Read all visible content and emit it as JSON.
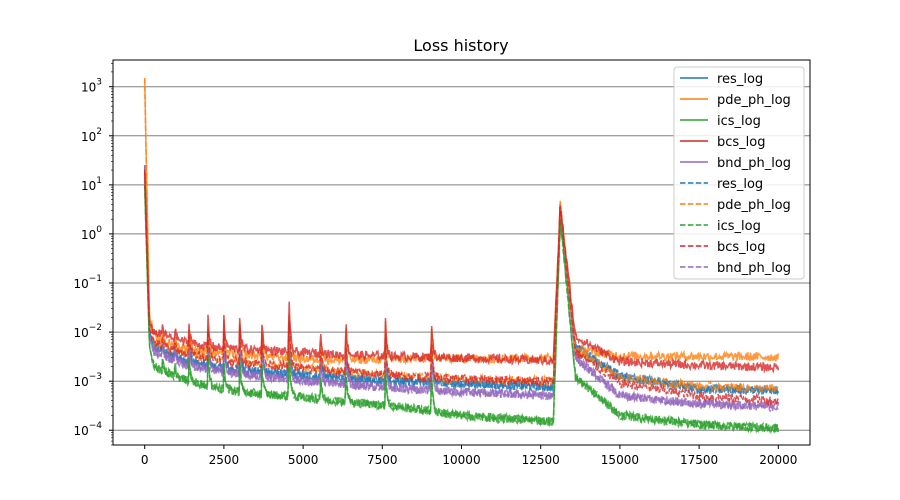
{
  "chart_data": {
    "type": "line",
    "title": "Loss history",
    "xlabel": "",
    "ylabel": "",
    "yscale": "log",
    "xlim": [
      -1000,
      21000
    ],
    "ylim": [
      5e-05,
      3500
    ],
    "x_ticks": [
      0,
      2500,
      5000,
      7500,
      10000,
      12500,
      15000,
      17500,
      20000
    ],
    "x_tick_labels": [
      "0",
      "2500",
      "5000",
      "7500",
      "10000",
      "12500",
      "15000",
      "17500",
      "20000"
    ],
    "y_ticks": [
      0.0001,
      0.001,
      0.01,
      0.1,
      1,
      10,
      100,
      1000
    ],
    "y_tick_labels": [
      [
        "10",
        "−4"
      ],
      [
        "10",
        "−3"
      ],
      [
        "10",
        "−2"
      ],
      [
        "10",
        "−1"
      ],
      [
        "10",
        "0"
      ],
      [
        "10",
        "1"
      ],
      [
        "10",
        "2"
      ],
      [
        "10",
        "3"
      ]
    ],
    "grid": "horizontal",
    "legend_position": "top-right",
    "spikes": [
      {
        "x": 0,
        "h": 1
      },
      {
        "x": 560,
        "h": 0.15
      },
      {
        "x": 950,
        "h": 0.2
      },
      {
        "x": 1400,
        "h": 0.3
      },
      {
        "x": 2000,
        "h": 0.45
      },
      {
        "x": 2500,
        "h": 0.45
      },
      {
        "x": 3000,
        "h": 0.5
      },
      {
        "x": 3700,
        "h": 0.45
      },
      {
        "x": 4550,
        "h": 0.9
      },
      {
        "x": 5550,
        "h": 0.4
      },
      {
        "x": 6350,
        "h": 0.55
      },
      {
        "x": 7600,
        "h": 0.6
      },
      {
        "x": 9050,
        "h": 0.65
      },
      {
        "x": 13100,
        "h": 1
      }
    ],
    "series": [
      {
        "name": "res_log",
        "color": "#1f77b4",
        "dash": false,
        "x": [
          0,
          150,
          300,
          1000,
          2000,
          3000,
          4500,
          6000,
          8000,
          10000,
          12900,
          13120,
          13600,
          15000,
          17500,
          20000
        ],
        "y": [
          25,
          0.01,
          0.005,
          0.003,
          0.002,
          0.0017,
          0.0014,
          0.0012,
          0.001,
          0.0009,
          0.00075,
          2.5,
          0.005,
          0.0013,
          0.0007,
          0.00065
        ]
      },
      {
        "name": "pde_ph_log",
        "color": "#ff7f0e",
        "dash": false,
        "x": [
          0,
          150,
          300,
          1000,
          2000,
          3000,
          4500,
          6000,
          8000,
          10000,
          12900,
          13120,
          13600,
          15000,
          17500,
          20000
        ],
        "y": [
          1500,
          0.02,
          0.008,
          0.005,
          0.004,
          0.0035,
          0.003,
          0.0027,
          0.0028,
          0.0029,
          0.003,
          4,
          0.0045,
          0.0033,
          0.0032,
          0.0031
        ]
      },
      {
        "name": "ics_log",
        "color": "#2ca02c",
        "dash": false,
        "x": [
          0,
          150,
          300,
          1000,
          2000,
          3000,
          4500,
          6000,
          8000,
          10000,
          12900,
          13120,
          13600,
          15000,
          17500,
          20000
        ],
        "y": [
          10,
          0.005,
          0.002,
          0.0012,
          0.0008,
          0.0006,
          0.0005,
          0.0004,
          0.0003,
          0.0002,
          0.00015,
          2,
          0.0012,
          0.0002,
          0.00013,
          0.00011
        ]
      },
      {
        "name": "bcs_log",
        "color": "#d62728",
        "dash": false,
        "x": [
          0,
          150,
          300,
          1000,
          2000,
          3000,
          4500,
          6000,
          8000,
          10000,
          12900,
          13120,
          13600,
          15000,
          17500,
          20000
        ],
        "y": [
          20,
          0.015,
          0.01,
          0.007,
          0.005,
          0.0045,
          0.004,
          0.0035,
          0.0032,
          0.003,
          0.0026,
          3.5,
          0.008,
          0.0025,
          0.0021,
          0.0019
        ]
      },
      {
        "name": "bnd_ph_log",
        "color": "#9467bd",
        "dash": false,
        "x": [
          0,
          150,
          300,
          1000,
          2000,
          3000,
          4500,
          6000,
          8000,
          10000,
          12900,
          13120,
          13600,
          15000,
          17500,
          20000
        ],
        "y": [
          25,
          0.008,
          0.004,
          0.0025,
          0.0017,
          0.0014,
          0.0011,
          0.0009,
          0.0007,
          0.0006,
          0.0005,
          2.5,
          0.003,
          0.0005,
          0.00035,
          0.0003
        ]
      },
      {
        "name": "res_log",
        "color": "#1f77b4",
        "dash": true,
        "x": [
          0,
          150,
          300,
          1000,
          2000,
          3000,
          4500,
          6000,
          8000,
          10000,
          12900,
          13120,
          13600,
          15000,
          17500,
          20000
        ],
        "y": [
          25,
          0.01,
          0.005,
          0.003,
          0.002,
          0.0017,
          0.0014,
          0.0012,
          0.001,
          0.0009,
          0.00075,
          2.5,
          0.005,
          0.0013,
          0.0007,
          0.00065
        ]
      },
      {
        "name": "pde_ph_log",
        "color": "#ff7f0e",
        "dash": true,
        "x": [
          0,
          150,
          300,
          1000,
          2000,
          3000,
          4500,
          6000,
          8000,
          10000,
          12900,
          13120,
          13600,
          15000,
          17500,
          20000
        ],
        "y": [
          1500,
          0.015,
          0.006,
          0.004,
          0.003,
          0.0025,
          0.002,
          0.0016,
          0.0013,
          0.0011,
          0.001,
          4,
          0.004,
          0.0012,
          0.0008,
          0.0007
        ]
      },
      {
        "name": "ics_log",
        "color": "#2ca02c",
        "dash": true,
        "x": [
          0,
          150,
          300,
          1000,
          2000,
          3000,
          4500,
          6000,
          8000,
          10000,
          12900,
          13120,
          13600,
          15000,
          17500,
          20000
        ],
        "y": [
          10,
          0.005,
          0.002,
          0.0012,
          0.0008,
          0.0006,
          0.0005,
          0.0004,
          0.0003,
          0.0002,
          0.00015,
          2,
          0.0012,
          0.0002,
          0.00013,
          0.00011
        ]
      },
      {
        "name": "bcs_log",
        "color": "#d62728",
        "dash": true,
        "x": [
          0,
          150,
          300,
          1000,
          2000,
          3000,
          4500,
          6000,
          8000,
          10000,
          12900,
          13120,
          13600,
          15000,
          17500,
          20000
        ],
        "y": [
          20,
          0.012,
          0.006,
          0.004,
          0.003,
          0.0025,
          0.002,
          0.0016,
          0.0013,
          0.0011,
          0.001,
          3.5,
          0.004,
          0.0009,
          0.0005,
          0.0004
        ]
      },
      {
        "name": "bnd_ph_log",
        "color": "#9467bd",
        "dash": true,
        "x": [
          0,
          150,
          300,
          1000,
          2000,
          3000,
          4500,
          6000,
          8000,
          10000,
          12900,
          13120,
          13600,
          15000,
          17500,
          20000
        ],
        "y": [
          25,
          0.008,
          0.004,
          0.0025,
          0.0017,
          0.0014,
          0.0011,
          0.0009,
          0.0007,
          0.0006,
          0.0005,
          2.5,
          0.003,
          0.0005,
          0.00035,
          0.0003
        ]
      }
    ]
  }
}
